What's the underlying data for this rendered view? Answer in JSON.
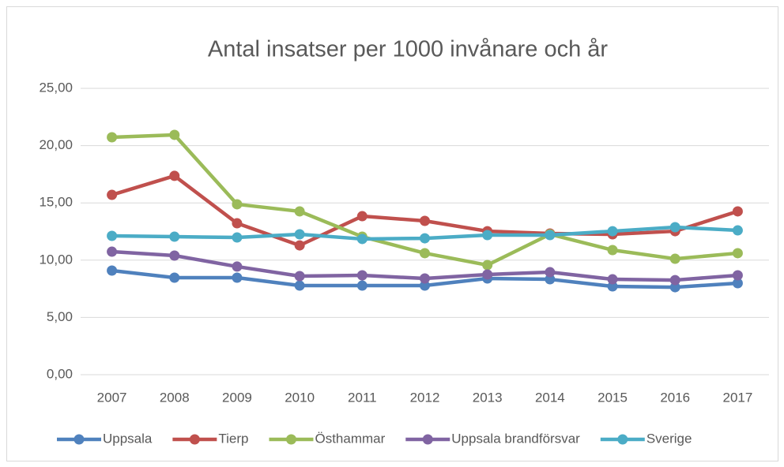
{
  "chart_data": {
    "type": "line",
    "title": "Antal insatser per 1000 invånare och år",
    "categories": [
      "2007",
      "2008",
      "2009",
      "2010",
      "2011",
      "2012",
      "2013",
      "2014",
      "2015",
      "2016",
      "2017"
    ],
    "series": [
      {
        "name": "Uppsala",
        "color": "#4f81bd",
        "values": [
          9.09,
          8.47,
          8.47,
          7.78,
          7.78,
          7.78,
          8.4,
          8.33,
          7.71,
          7.64,
          7.99
        ]
      },
      {
        "name": "Tierp",
        "color": "#c0504d",
        "values": [
          15.7,
          17.36,
          13.22,
          11.29,
          13.84,
          13.43,
          12.53,
          12.33,
          12.26,
          12.53,
          14.26
        ]
      },
      {
        "name": "Östhammar",
        "color": "#9bbb59",
        "values": [
          20.73,
          20.94,
          14.88,
          14.26,
          12.05,
          10.61,
          9.57,
          12.26,
          10.88,
          10.12,
          10.61
        ]
      },
      {
        "name": "Uppsala brandförsvar",
        "color": "#8064a2",
        "values": [
          10.74,
          10.4,
          9.44,
          8.61,
          8.68,
          8.4,
          8.75,
          8.95,
          8.33,
          8.26,
          8.68
        ]
      },
      {
        "name": "Sverige",
        "color": "#4bacc6",
        "values": [
          12.12,
          12.05,
          11.98,
          12.26,
          11.85,
          11.91,
          12.19,
          12.19,
          12.53,
          12.88,
          12.6
        ]
      }
    ],
    "ylim": [
      0,
      25
    ],
    "yticks": [
      {
        "value": 0,
        "label": "0,00"
      },
      {
        "value": 5,
        "label": "5,00"
      },
      {
        "value": 10,
        "label": "10,00"
      },
      {
        "value": 15,
        "label": "15,00"
      },
      {
        "value": 20,
        "label": "20,00"
      },
      {
        "value": 25,
        "label": "25,00"
      }
    ],
    "grid": true,
    "legend": "bottom"
  }
}
